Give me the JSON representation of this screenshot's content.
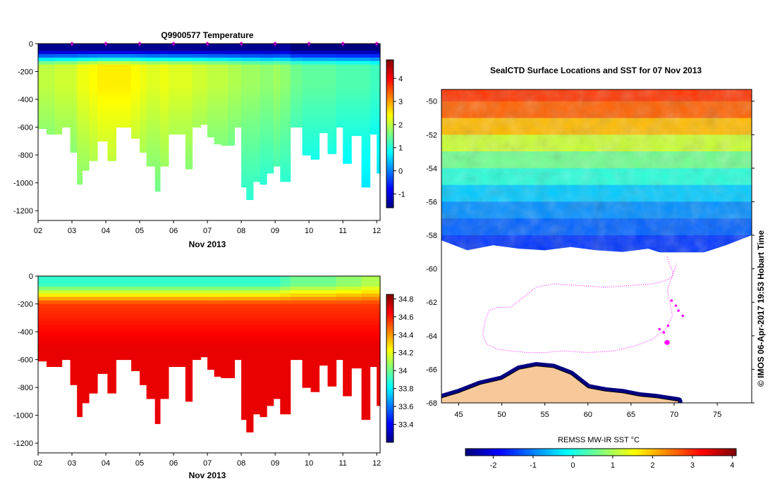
{
  "colors": {
    "jet": [
      "#00007f",
      "#0000ff",
      "#007fff",
      "#00ffff",
      "#7fff7f",
      "#ffff00",
      "#ff7f00",
      "#ff0000",
      "#7f0000"
    ],
    "profile_marker": "#ff00ff",
    "track": "#ff00ff",
    "land": "#f7c99a",
    "no_data": "#ffffff"
  },
  "chart_data": [
    {
      "type": "heatmap",
      "title": "Q9900577  Temperature",
      "xlabel": "Nov 2013",
      "ylabel": "",
      "x_tick_labels": [
        "02",
        "03",
        "04",
        "05",
        "06",
        "07",
        "08",
        "09",
        "10",
        "11",
        "12"
      ],
      "xlim": [
        2.0,
        12.1
      ],
      "ylim": [
        -1270,
        0
      ],
      "y_ticks": [
        0,
        -200,
        -400,
        -600,
        -800,
        -1000,
        -1200
      ],
      "colorbar": {
        "ticks": [
          -1,
          0,
          1,
          2,
          3,
          4
        ],
        "range": [
          -1.6,
          4.8
        ]
      },
      "profile_markers_at_days": [
        3.0,
        4.0,
        5.0,
        6.0,
        7.0,
        8.0,
        9.0,
        10.0,
        11.0,
        12.0
      ],
      "profile_days": [
        2.0,
        2.25,
        2.5,
        2.7,
        2.95,
        3.15,
        3.3,
        3.5,
        3.75,
        4.05,
        4.3,
        4.5,
        4.75,
        5.0,
        5.2,
        5.45,
        5.6,
        5.85,
        6.1,
        6.35,
        6.55,
        6.8,
        7.0,
        7.2,
        7.4,
        7.6,
        7.8,
        8.0,
        8.15,
        8.35,
        8.55,
        8.75,
        8.95,
        9.15,
        9.45,
        9.8,
        10.05,
        10.3,
        10.55,
        10.8,
        11.0,
        11.25,
        11.55,
        11.8,
        12.0
      ],
      "profile_max_depths": [
        -610,
        -650,
        -650,
        -600,
        -780,
        -1010,
        -910,
        -840,
        -700,
        -840,
        -600,
        -600,
        -680,
        -780,
        -880,
        -1060,
        -880,
        -650,
        -650,
        -900,
        -600,
        -580,
        -670,
        -720,
        -730,
        -730,
        -600,
        -1030,
        -1120,
        -990,
        -1010,
        -930,
        -880,
        -990,
        -600,
        -800,
        -830,
        -640,
        -790,
        -600,
        -860,
        -660,
        -1030,
        -650,
        -930
      ],
      "series": [
        {
          "name": "surface_temperature",
          "values": [
            -1.5,
            -1.5,
            -1.5,
            -1.5,
            -1.5,
            -1.5,
            -1.5,
            -1.5,
            -1.5,
            -1.5,
            -1.5,
            -1.5,
            -1.5,
            -1.5,
            -1.5,
            -1.5,
            -1.5,
            -1.5,
            -1.5,
            -1.5,
            -1.5,
            -1.5,
            -1.5,
            -1.5,
            -1.5,
            -1.5,
            -1.5,
            -1.5,
            -1.5,
            -1.5,
            -1.5,
            -1.5,
            -1.5,
            -1.4,
            -1.6,
            -1.6,
            -1.6,
            -1.6,
            -1.6,
            -1.6,
            -1.6,
            -1.6,
            -1.6,
            -1.6,
            -1.6
          ]
        },
        {
          "name": "max_temperature_below_thermocline",
          "values": [
            2.0,
            2.0,
            2.1,
            2.1,
            2.1,
            2.3,
            2.3,
            2.4,
            2.5,
            2.5,
            2.5,
            2.5,
            2.4,
            2.3,
            2.2,
            2.2,
            2.3,
            2.2,
            2.2,
            2.2,
            2.1,
            2.1,
            2.0,
            2.0,
            2.0,
            1.9,
            1.9,
            1.8,
            1.8,
            1.8,
            1.7,
            1.7,
            1.8,
            1.7,
            1.5,
            1.4,
            1.4,
            1.4,
            1.4,
            1.3,
            1.3,
            1.3,
            1.3,
            1.2,
            1.2
          ]
        }
      ]
    },
    {
      "type": "heatmap",
      "title": "",
      "xlabel": "Nov 2013",
      "ylabel": "",
      "x_tick_labels": [
        "02",
        "03",
        "04",
        "05",
        "06",
        "07",
        "08",
        "09",
        "10",
        "11",
        "12"
      ],
      "xlim": [
        2.0,
        12.1
      ],
      "ylim": [
        -1270,
        0
      ],
      "y_ticks": [
        0,
        -200,
        -400,
        -600,
        -800,
        -1000,
        -1200
      ],
      "colorbar": {
        "ticks": [
          33.4,
          33.6,
          33.8,
          34,
          34.2,
          34.4,
          34.6,
          34.8
        ],
        "tick_labels": [
          "33.4",
          "33.6",
          "33.8",
          "34",
          "34.2",
          "34.4",
          "34.6",
          "34.8"
        ],
        "range": [
          33.2,
          34.85
        ]
      },
      "series": [
        {
          "name": "surface_salinity",
          "values": [
            33.9,
            33.9,
            33.9,
            33.9,
            33.9,
            33.9,
            33.9,
            33.9,
            33.9,
            33.9,
            33.9,
            33.9,
            33.9,
            33.9,
            33.9,
            33.9,
            33.9,
            33.9,
            33.9,
            33.9,
            33.9,
            33.9,
            33.9,
            33.9,
            33.9,
            33.9,
            33.9,
            33.9,
            33.9,
            33.9,
            33.9,
            33.9,
            33.9,
            33.95,
            34.0,
            34.0,
            34.0,
            34.0,
            34.0,
            34.05,
            34.05,
            34.05,
            34.1,
            34.1,
            34.1
          ]
        },
        {
          "name": "deep_salinity",
          "values": [
            34.68,
            34.68,
            34.68,
            34.68,
            34.68,
            34.68,
            34.68,
            34.68,
            34.68,
            34.68,
            34.68,
            34.68,
            34.68,
            34.68,
            34.68,
            34.68,
            34.68,
            34.68,
            34.68,
            34.68,
            34.68,
            34.68,
            34.68,
            34.68,
            34.68,
            34.68,
            34.68,
            34.68,
            34.68,
            34.68,
            34.68,
            34.68,
            34.68,
            34.68,
            34.68,
            34.68,
            34.68,
            34.68,
            34.68,
            34.68,
            34.68,
            34.68,
            34.68,
            34.68,
            34.68
          ]
        }
      ]
    },
    {
      "type": "heatmap",
      "title": "SealCTD Surface Locations and SST for 07 Nov 2013",
      "xlabel": "",
      "ylabel": "",
      "x_ticks": [
        45,
        50,
        55,
        60,
        65,
        70,
        75
      ],
      "y_ticks": [
        -50,
        -52,
        -54,
        -56,
        -58,
        -60,
        -62,
        -64,
        -66,
        -68
      ],
      "xlim": [
        43,
        79
      ],
      "ylim": [
        -68,
        -49.3
      ],
      "colorbar": {
        "title": "REMSS MW-IR SST °C",
        "ticks": [
          -2,
          -1,
          0,
          1,
          2,
          3,
          4
        ],
        "range": [
          -2.7,
          4.1
        ]
      },
      "sst_by_latitude": {
        "lat": [
          -49.5,
          -50.5,
          -51.5,
          -52.5,
          -53.5,
          -54.5,
          -55.5,
          -56.5,
          -57.5,
          -58.5
        ],
        "sst": [
          2.9,
          2.6,
          2.0,
          1.2,
          0.6,
          0.1,
          -0.5,
          -0.9,
          -1.2,
          -1.5
        ]
      },
      "ice_edge": {
        "lon": [
          43,
          46,
          49,
          52,
          55,
          58,
          61,
          64,
          67,
          70,
          73,
          76,
          79
        ],
        "lat": [
          -58.3,
          -58.9,
          -58.6,
          -58.8,
          -58.9,
          -58.7,
          -58.9,
          -59.0,
          -58.8,
          -59.3,
          -59.1,
          -58.6,
          -58.0
        ]
      },
      "coast": {
        "lon": [
          43,
          45,
          47.5,
          50,
          52,
          54,
          56,
          58,
          60,
          62,
          64,
          66,
          68,
          70.5
        ],
        "lat": [
          -67.7,
          -67.4,
          -66.9,
          -66.6,
          -66.0,
          -65.8,
          -65.9,
          -66.3,
          -67.1,
          -67.3,
          -67.4,
          -67.6,
          -67.7,
          -67.9
        ]
      },
      "track": {
        "lon": [
          69.2,
          69.5,
          69.9,
          69.7,
          69.0,
          67.5,
          65.0,
          62.0,
          59.0,
          56.0,
          54.0,
          52.5,
          51.0,
          49.5,
          48.5,
          48.0,
          47.8,
          48.3,
          49.5,
          51.0,
          53.0,
          55.0,
          57.0,
          60.0,
          63.0,
          65.5,
          67.5,
          69.0,
          69.8,
          69.5,
          69.2,
          69.6,
          70.0,
          70.3
        ],
        "lat": [
          -59.3,
          -59.8,
          -60.2,
          -60.5,
          -60.7,
          -60.9,
          -61.0,
          -61.1,
          -61.0,
          -60.9,
          -61.1,
          -61.7,
          -62.3,
          -62.3,
          -62.5,
          -63.2,
          -64.0,
          -64.5,
          -64.8,
          -64.9,
          -65.0,
          -65.0,
          -64.9,
          -65.0,
          -64.9,
          -64.6,
          -64.2,
          -63.6,
          -62.8,
          -62.0,
          -61.3,
          -60.7,
          -60.1,
          -59.7
        ]
      },
      "profile_locations": {
        "lon": [
          71.0,
          70.5,
          70.2,
          69.7,
          69.3,
          68.8,
          68.3,
          69.0
        ],
        "lat": [
          -62.8,
          -62.5,
          -62.2,
          -61.9,
          -63.4,
          -63.8,
          -63.6,
          -64.4
        ]
      },
      "current_location": {
        "lon": 69.2,
        "lat": -64.4
      },
      "side_caption": "© IMOS 06-Apr-2017 19:53 Hobart Time"
    }
  ]
}
